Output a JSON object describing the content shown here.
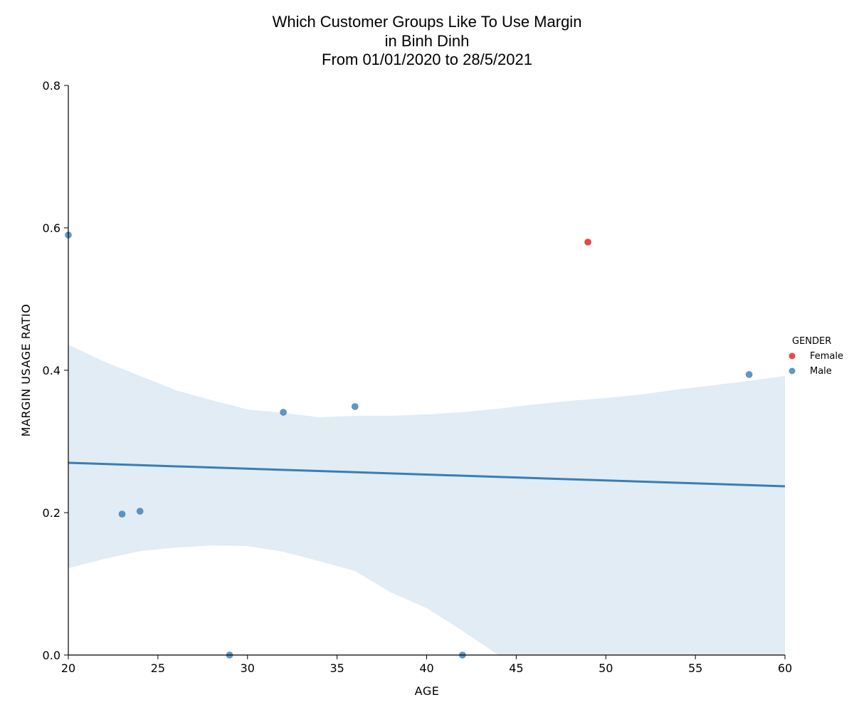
{
  "chart_data": {
    "type": "scatter",
    "title": [
      "Which Customer Groups Like To Use Margin",
      "in Binh Dinh",
      "From 01/01/2020 to 28/5/2021"
    ],
    "xlabel": "AGE",
    "ylabel": "MARGIN USAGE RATIO",
    "xlim": [
      20,
      60
    ],
    "ylim": [
      0,
      0.8
    ],
    "x_ticks": [
      20,
      25,
      30,
      35,
      40,
      45,
      50,
      55,
      60
    ],
    "y_ticks": [
      0.0,
      0.2,
      0.4,
      0.6,
      0.8
    ],
    "y_tick_labels": [
      "0.0",
      "0.2",
      "0.4",
      "0.6",
      "0.8"
    ],
    "grid": false,
    "legend": {
      "title": "GENDER",
      "placement": "right",
      "entries": [
        {
          "label": "Female",
          "color": "#e41a1c"
        },
        {
          "label": "Male",
          "color": "#377eb8"
        }
      ]
    },
    "series": [
      {
        "name": "Female",
        "color": "#e41a1c",
        "points": [
          {
            "x": 49,
            "y": 0.58
          }
        ]
      },
      {
        "name": "Male",
        "color": "#377eb8",
        "points": [
          {
            "x": 20,
            "y": 0.59
          },
          {
            "x": 23,
            "y": 0.198
          },
          {
            "x": 24,
            "y": 0.202
          },
          {
            "x": 29,
            "y": 0.0
          },
          {
            "x": 32,
            "y": 0.341
          },
          {
            "x": 36,
            "y": 0.349
          },
          {
            "x": 42,
            "y": 0.0
          },
          {
            "x": 58,
            "y": 0.394
          }
        ],
        "regression": {
          "x": [
            20,
            60
          ],
          "y": [
            0.27,
            0.237
          ]
        },
        "confidence_band": {
          "x": [
            20,
            22,
            24,
            26,
            28,
            30,
            32,
            34,
            36,
            38,
            40,
            42,
            44,
            46,
            48,
            50,
            52,
            54,
            56,
            58,
            60
          ],
          "upper": [
            0.436,
            0.412,
            0.392,
            0.372,
            0.358,
            0.345,
            0.34,
            0.334,
            0.336,
            0.336,
            0.338,
            0.341,
            0.346,
            0.352,
            0.357,
            0.361,
            0.366,
            0.373,
            0.379,
            0.385,
            0.392
          ],
          "lower": [
            0.122,
            0.135,
            0.146,
            0.151,
            0.154,
            0.153,
            0.145,
            0.132,
            0.118,
            0.088,
            0.066,
            0.034,
            0.0,
            0.0,
            0.0,
            0.0,
            0.0,
            0.0,
            0.0,
            0.0,
            0.0
          ]
        }
      }
    ]
  }
}
